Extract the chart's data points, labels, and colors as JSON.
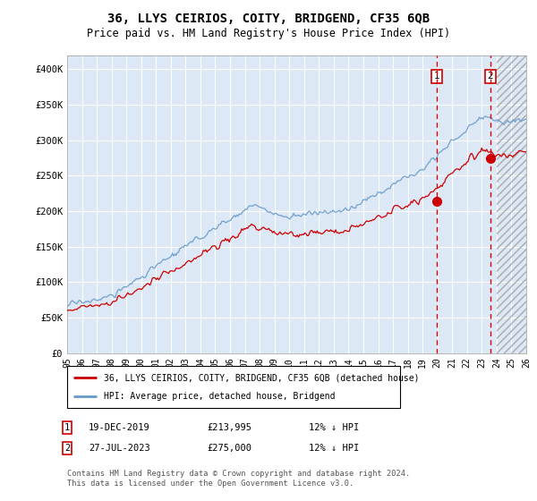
{
  "title": "36, LLYS CEIRIOS, COITY, BRIDGEND, CF35 6QB",
  "subtitle": "Price paid vs. HM Land Registry's House Price Index (HPI)",
  "xlim_start": 1995,
  "xlim_end": 2026,
  "ylim": [
    0,
    420000
  ],
  "yticks": [
    0,
    50000,
    100000,
    150000,
    200000,
    250000,
    300000,
    350000,
    400000
  ],
  "ytick_labels": [
    "£0",
    "£50K",
    "£100K",
    "£150K",
    "£200K",
    "£250K",
    "£300K",
    "£350K",
    "£400K"
  ],
  "legend_label_red": "36, LLYS CEIRIOS, COITY, BRIDGEND, CF35 6QB (detached house)",
  "legend_label_blue": "HPI: Average price, detached house, Bridgend",
  "sale1_date": "19-DEC-2019",
  "sale1_price": "£213,995",
  "sale1_note": "12% ↓ HPI",
  "sale2_date": "27-JUL-2023",
  "sale2_price": "£275,000",
  "sale2_note": "12% ↓ HPI",
  "footnote": "Contains HM Land Registry data © Crown copyright and database right 2024.\nThis data is licensed under the Open Government Licence v3.0.",
  "vline1_x": 2019.97,
  "vline2_x": 2023.56,
  "sale1_y": 213995,
  "sale2_y": 275000,
  "red_color": "#cc0000",
  "blue_color": "#6699cc",
  "vline_color": "#dd0000",
  "bg_color": "#dce8f5",
  "hatch_start": 2024.0
}
